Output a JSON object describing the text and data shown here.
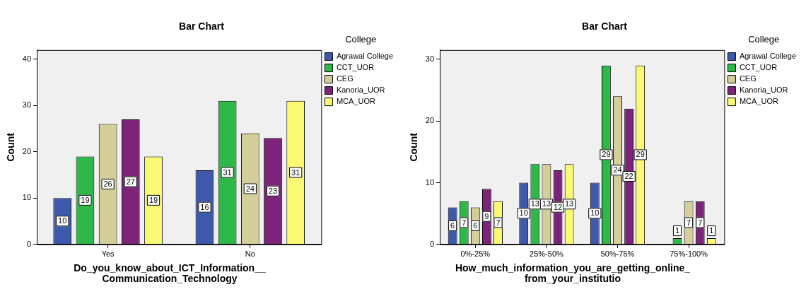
{
  "chart_data": [
    {
      "type": "bar",
      "title": "Bar Chart",
      "xlabel": "Do_you_know_about_ICT_Information__ Communication_Technology",
      "ylabel": "Count",
      "legend_title": "College",
      "legend": "right",
      "data_labels": true,
      "grid": false,
      "categories": [
        "Yes",
        "No"
      ],
      "ylim": [
        0,
        42
      ],
      "yticks": [
        0,
        10,
        20,
        30,
        40
      ],
      "series": [
        {
          "name": "Agrawal College",
          "color": "#3e58ac",
          "values": [
            10,
            16
          ]
        },
        {
          "name": "CCT_UOR",
          "color": "#2eb848",
          "values": [
            19,
            31
          ]
        },
        {
          "name": "CEG",
          "color": "#d4cf98",
          "values": [
            26,
            24
          ]
        },
        {
          "name": "Kanoria_UOR",
          "color": "#7b2479",
          "values": [
            27,
            23
          ]
        },
        {
          "name": "MCA_UOR",
          "color": "#fbf873",
          "values": [
            19,
            31
          ]
        }
      ]
    },
    {
      "type": "bar",
      "title": "Bar Chart",
      "xlabel": "How_much_information_you_are_getting_online_ from_your_institutio",
      "ylabel": "Count",
      "legend_title": "College",
      "legend": "right",
      "data_labels": true,
      "grid": false,
      "categories": [
        "0%-25%",
        "25%-50%",
        "50%-75%",
        "75%-100%"
      ],
      "ylim": [
        0,
        31.5
      ],
      "yticks": [
        0,
        10,
        20,
        30
      ],
      "series": [
        {
          "name": "Agrawal College",
          "color": "#3e58ac",
          "values": [
            6,
            10,
            10,
            null
          ]
        },
        {
          "name": "CCT_UOR",
          "color": "#2eb848",
          "values": [
            7,
            13,
            29,
            1
          ]
        },
        {
          "name": "CEG",
          "color": "#d4cf98",
          "values": [
            6,
            13,
            24,
            7
          ]
        },
        {
          "name": "Kanoria_UOR",
          "color": "#7b2479",
          "values": [
            9,
            12,
            22,
            7
          ]
        },
        {
          "name": "MCA_UOR",
          "color": "#fbf873",
          "values": [
            7,
            13,
            29,
            1
          ]
        }
      ]
    }
  ]
}
